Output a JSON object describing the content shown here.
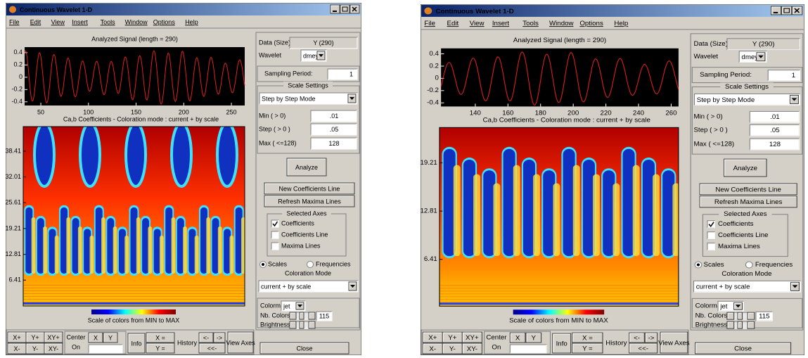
{
  "windows": [
    {
      "title": "Continuous Wavelet 1-D",
      "menu": [
        "File",
        "Edit",
        "View",
        "Insert",
        "Tools",
        "Window",
        "Options",
        "Help"
      ],
      "signal_plot": {
        "title": "Analyzed Signal  (length = 290)",
        "xlim": [
          33,
          264
        ],
        "ylim": [
          -0.46,
          0.49
        ],
        "xticks": [
          50,
          100,
          150,
          200,
          250
        ],
        "yticks": [
          0.4,
          0.2,
          0,
          -0.2,
          -0.4
        ]
      },
      "scalogram": {
        "title": "Ca,b Coefficients  - Coloration mode : current + by scale",
        "ylim": [
          0,
          44.5
        ],
        "yticks": [
          6.41,
          12.81,
          19.21,
          25.61,
          32.01,
          38.41
        ]
      },
      "colorbar_label": "Scale of colors from MIN to MAX",
      "panel": {
        "data_size_label": "Data (Size)",
        "data_size": "Y  (290)",
        "wavelet_label": "Wavelet",
        "wavelet": "dmey",
        "sampling_period_label": "Sampling Period:",
        "sampling_period": 1,
        "scale_settings_label": "Scale Settings",
        "scale_mode": "Step by Step Mode",
        "min_label": "Min ( > 0)",
        "min": ".01",
        "step_label": "Step ( > 0 )",
        "step": ".05",
        "max_label": "Max ( <=128)",
        "max": 128,
        "analyze": "Analyze",
        "new_coefficients_line": "New Coefficients Line",
        "refresh_maxima_lines": "Refresh Maxima Lines",
        "selected_axes_label": "Selected Axes",
        "checkboxes": [
          {
            "label": "Coefficients",
            "checked": true
          },
          {
            "label": "Coefficients Line",
            "checked": false
          },
          {
            "label": "Maxima Lines",
            "checked": false
          }
        ],
        "scales": "Scales",
        "frequencies": "Frequencies",
        "coloration_mode_label": "Coloration Mode",
        "coloration_mode": "current + by scale",
        "colormap_label": "Colormap",
        "colormap": "jet",
        "nb_colors_label": "Nb. Colors",
        "nb_colors": 115,
        "brightness_label": "Brightness",
        "close": "Close"
      },
      "toolbar": {
        "zoom": [
          "X+",
          "Y+",
          "XY+",
          "X-",
          "Y-",
          "XY-"
        ],
        "center_on": [
          "Center",
          "On"
        ],
        "x": "X",
        "y": "Y",
        "info": "Info",
        "x_eq": "X =",
        "y_eq": "Y =",
        "history": "History",
        "back": "<-",
        "forward": "->",
        "back_all": "<<-",
        "view_axes": "View Axes"
      }
    },
    {
      "title": "Continuous Wavelet 1-D",
      "menu": [
        "File",
        "Edit",
        "View",
        "Insert",
        "Tools",
        "Window",
        "Options",
        "Help"
      ],
      "signal_plot": {
        "title": "Analyzed Signal  (length = 290)",
        "xlim": [
          119,
          264.5
        ],
        "ylim": [
          -0.46,
          0.49
        ],
        "xticks": [
          140,
          160,
          180,
          200,
          220,
          240,
          260
        ],
        "yticks": [
          0.4,
          0.2,
          0,
          -0.2,
          -0.4
        ]
      },
      "scalogram": {
        "title": "Ca,b Coefficients  - Coloration mode : current + by scale",
        "ylim": [
          0.2,
          23.9
        ],
        "yticks": [
          6.41,
          12.81,
          19.21
        ]
      },
      "colorbar_label": "Scale of colors from MIN to MAX",
      "panel": {
        "data_size_label": "Data (Size)",
        "data_size": "Y  (290)",
        "wavelet_label": "Wavelet",
        "wavelet": "dmey",
        "sampling_period_label": "Sampling Period:",
        "sampling_period": 1,
        "scale_settings_label": "Scale Settings",
        "scale_mode": "Step by Step Mode",
        "min_label": "Min ( > 0)",
        "min": ".01",
        "step_label": "Step ( > 0 )",
        "step": ".05",
        "max_label": "Max ( <=128)",
        "max": 128,
        "analyze": "Analyze",
        "new_coefficients_line": "New Coefficients Line",
        "refresh_maxima_lines": "Refresh Maxima Lines",
        "selected_axes_label": "Selected Axes",
        "checkboxes": [
          {
            "label": "Coefficients",
            "checked": true
          },
          {
            "label": "Coefficients Line",
            "checked": false
          },
          {
            "label": "Maxima Lines",
            "checked": false
          }
        ],
        "scales": "Scales",
        "frequencies": "Frequencies",
        "coloration_mode_label": "Coloration Mode",
        "coloration_mode": "current + by scale",
        "colormap_label": "Colormap",
        "colormap": "jet",
        "nb_colors_label": "Nb. Colors",
        "nb_colors": 115,
        "brightness_label": "Brightness",
        "close": "Close"
      },
      "toolbar": {
        "zoom": [
          "X+",
          "Y+",
          "XY+",
          "X-",
          "Y-",
          "XY-"
        ],
        "center_on": [
          "Center",
          "On"
        ],
        "x": "X",
        "y": "Y",
        "info": "Info",
        "x_eq": "X =",
        "y_eq": "Y =",
        "history": "History",
        "back": "<-",
        "forward": "->",
        "back_all": "<<-",
        "view_axes": "View Axes"
      }
    }
  ]
}
